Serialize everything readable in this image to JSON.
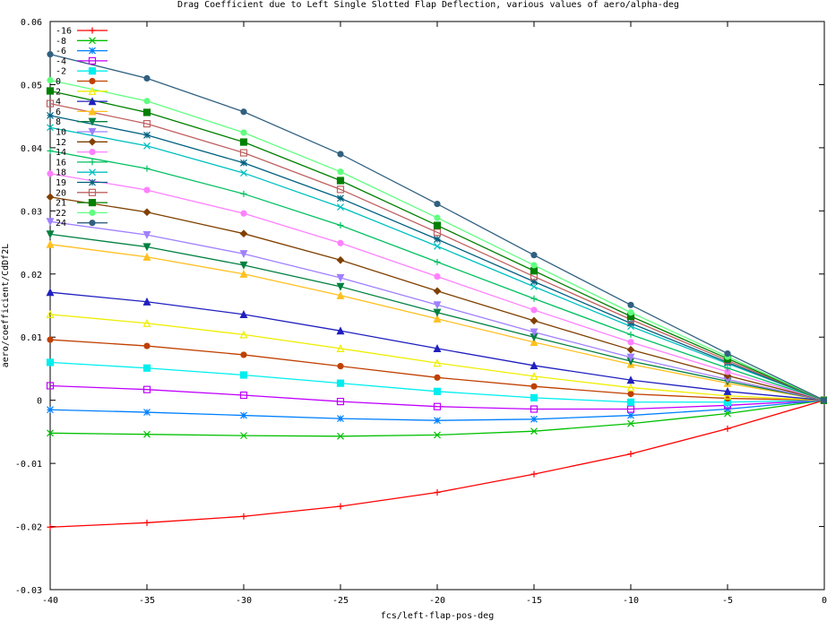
{
  "chart_data": {
    "type": "line",
    "title": "Drag Coefficient due to Left Single Slotted Flap Deflection, various values of aero/alpha-deg",
    "xlabel": "fcs/left-flap-pos-deg",
    "ylabel": "aero/coefficient/CdDf2L",
    "xlim": [
      -40,
      0
    ],
    "ylim": [
      -0.03,
      0.06
    ],
    "x_ticks": [
      "-40",
      "-35",
      "-30",
      "-25",
      "-20",
      "-15",
      "-10",
      "-5",
      "0"
    ],
    "y_ticks": [
      "-0.03",
      "-0.02",
      "-0.01",
      "0",
      "0.01",
      "0.02",
      "0.03",
      "0.04",
      "0.05",
      "0.06"
    ],
    "x_tick_values": [
      -40,
      -35,
      -30,
      -25,
      -20,
      -15,
      -10,
      -5,
      0
    ],
    "y_tick_values": [
      -0.03,
      -0.02,
      -0.01,
      0,
      0.01,
      0.02,
      0.03,
      0.04,
      0.05,
      0.06
    ],
    "grid": false,
    "legend_position": "top-left",
    "x": [
      -40,
      -35,
      -30,
      -25,
      -20,
      -15,
      -10,
      -5,
      0
    ],
    "series": [
      {
        "name": "-16",
        "color": "#ff0000",
        "marker": "plus",
        "values": [
          -0.0201,
          -0.0194,
          -0.0184,
          -0.0168,
          -0.0146,
          -0.0117,
          -0.0085,
          -0.0045,
          0
        ]
      },
      {
        "name": "-8",
        "color": "#00c000",
        "marker": "x",
        "values": [
          -0.0052,
          -0.0054,
          -0.0056,
          -0.0057,
          -0.0055,
          -0.0049,
          -0.0037,
          -0.0021,
          0
        ]
      },
      {
        "name": "-6",
        "color": "#0080ff",
        "marker": "star",
        "values": [
          -0.0015,
          -0.0019,
          -0.0024,
          -0.0029,
          -0.0032,
          -0.003,
          -0.0024,
          -0.0014,
          0
        ]
      },
      {
        "name": "-4",
        "color": "#c000ff",
        "marker": "square",
        "values": [
          0.0023,
          0.0017,
          0.0008,
          -0.0002,
          -0.001,
          -0.0014,
          -0.0014,
          -0.0008,
          0
        ]
      },
      {
        "name": "-2",
        "color": "#00eeee",
        "marker": "filled-square",
        "values": [
          0.006,
          0.0051,
          0.004,
          0.0027,
          0.0014,
          0.0004,
          -0.0003,
          -0.0003,
          0
        ]
      },
      {
        "name": "0",
        "color": "#c04000",
        "marker": "filled-circle",
        "values": [
          0.0096,
          0.0086,
          0.0072,
          0.0054,
          0.0036,
          0.0022,
          0.001,
          0.0003,
          0
        ]
      },
      {
        "name": "2",
        "color": "#eeee00",
        "marker": "triangle",
        "values": [
          0.0136,
          0.0122,
          0.0104,
          0.0082,
          0.0059,
          0.0038,
          0.002,
          0.0007,
          0
        ]
      },
      {
        "name": "4",
        "color": "#2020c0",
        "marker": "filled-triangle",
        "values": [
          0.0171,
          0.0156,
          0.0136,
          0.011,
          0.0082,
          0.0055,
          0.0032,
          0.0014,
          0
        ]
      },
      {
        "name": "6",
        "color": "#ffc020",
        "marker": "filled-triangle",
        "values": [
          0.0247,
          0.0227,
          0.02,
          0.0166,
          0.0129,
          0.0092,
          0.0057,
          0.0027,
          0
        ]
      },
      {
        "name": "8",
        "color": "#008040",
        "marker": "filled-triangle-down",
        "values": [
          0.0263,
          0.0243,
          0.0214,
          0.018,
          0.0139,
          0.01,
          0.0062,
          0.003,
          0
        ]
      },
      {
        "name": "10",
        "color": "#a080ff",
        "marker": "filled-triangle-down",
        "values": [
          0.0283,
          0.0262,
          0.0232,
          0.0194,
          0.0151,
          0.0108,
          0.0068,
          0.0033,
          0
        ]
      },
      {
        "name": "12",
        "color": "#804000",
        "marker": "filled-diamond",
        "values": [
          0.0322,
          0.0298,
          0.0264,
          0.0222,
          0.0173,
          0.0126,
          0.008,
          0.0039,
          0
        ]
      },
      {
        "name": "14",
        "color": "#ff80ff",
        "marker": "filled-circle",
        "values": [
          0.0359,
          0.0333,
          0.0296,
          0.0249,
          0.0196,
          0.0143,
          0.0092,
          0.0045,
          0
        ]
      },
      {
        "name": "16",
        "color": "#00c060",
        "marker": "plus",
        "values": [
          0.0395,
          0.0367,
          0.0327,
          0.0277,
          0.0219,
          0.0161,
          0.0104,
          0.0051,
          0
        ]
      },
      {
        "name": "18",
        "color": "#00c0c0",
        "marker": "x",
        "values": [
          0.0432,
          0.0403,
          0.036,
          0.0306,
          0.0244,
          0.018,
          0.0117,
          0.0058,
          0
        ]
      },
      {
        "name": "19",
        "color": "#006080",
        "marker": "star",
        "values": [
          0.0451,
          0.042,
          0.0376,
          0.032,
          0.0255,
          0.0188,
          0.0122,
          0.006,
          0
        ]
      },
      {
        "name": "20",
        "color": "#c06060",
        "marker": "square",
        "values": [
          0.047,
          0.0438,
          0.0392,
          0.0334,
          0.0266,
          0.0196,
          0.0128,
          0.0063,
          0
        ]
      },
      {
        "name": "21",
        "color": "#008000",
        "marker": "filled-square",
        "values": [
          0.049,
          0.0456,
          0.0409,
          0.0348,
          0.0277,
          0.0205,
          0.0133,
          0.0066,
          0
        ]
      },
      {
        "name": "22",
        "color": "#60ff80",
        "marker": "filled-circle",
        "values": [
          0.0507,
          0.0474,
          0.0424,
          0.0362,
          0.0289,
          0.0214,
          0.0139,
          0.0069,
          0
        ]
      },
      {
        "name": "24",
        "color": "#306080",
        "marker": "filled-circle",
        "values": [
          0.0548,
          0.051,
          0.0457,
          0.039,
          0.0311,
          0.023,
          0.0151,
          0.0074,
          0
        ]
      }
    ]
  }
}
